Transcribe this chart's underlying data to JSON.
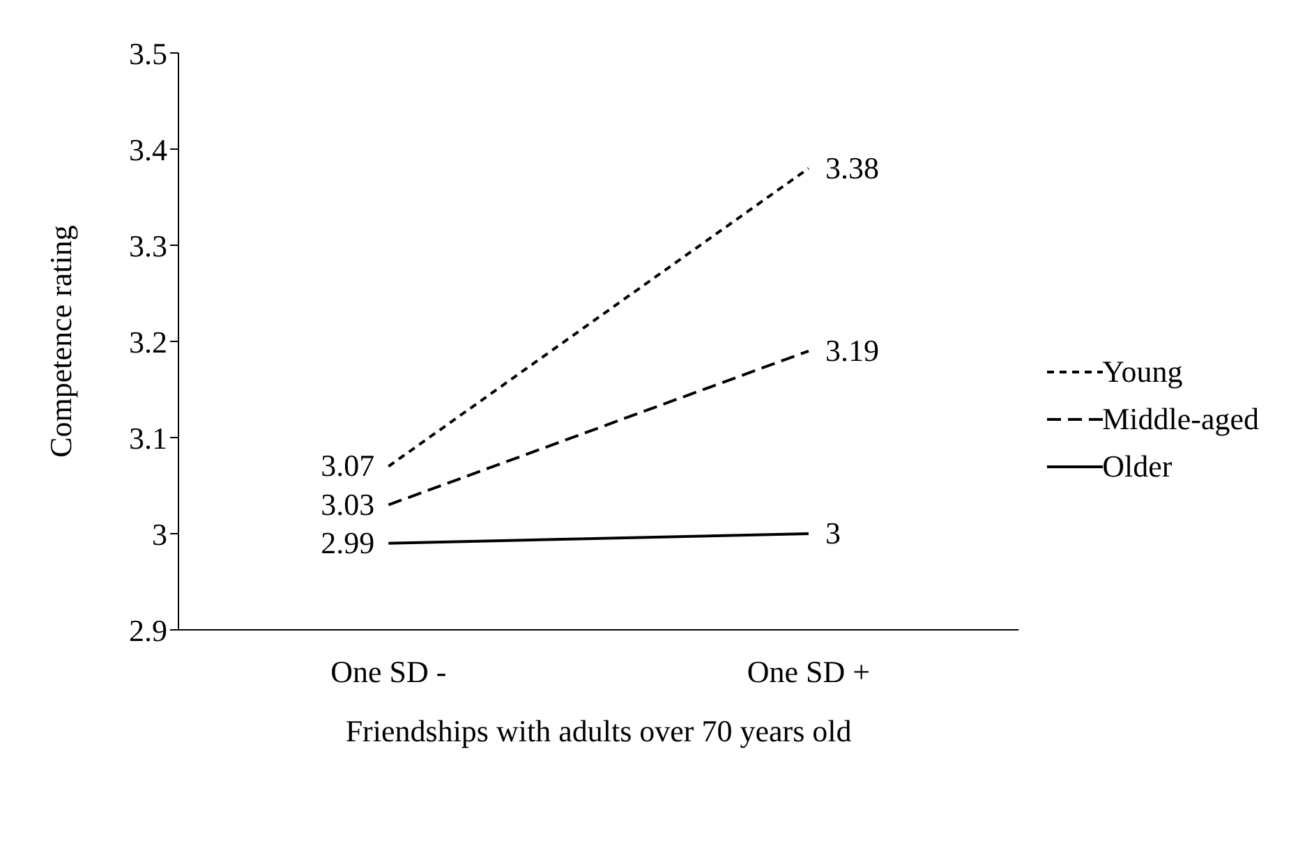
{
  "chart_data": {
    "type": "line",
    "xlabel": "Friendships with adults over 70 years old",
    "ylabel": "Competence rating",
    "categories": [
      "One SD -",
      "One SD +"
    ],
    "series": [
      {
        "name": "Young",
        "color": "#000000",
        "values": [
          3.07,
          3.38
        ],
        "line_style": "dotted"
      },
      {
        "name": "Middle-aged",
        "color": "#000000",
        "values": [
          3.03,
          3.19
        ],
        "line_style": "dashed"
      },
      {
        "name": "Older",
        "color": "#000000",
        "values": [
          2.99,
          3
        ],
        "line_style": "solid"
      }
    ],
    "ylim": [
      2.9,
      3.5
    ],
    "yticks": [
      2.9,
      3,
      3.1,
      3.2,
      3.3,
      3.4,
      3.5
    ],
    "data_labels": true,
    "legend": "right",
    "grid": false,
    "marker": "none"
  }
}
